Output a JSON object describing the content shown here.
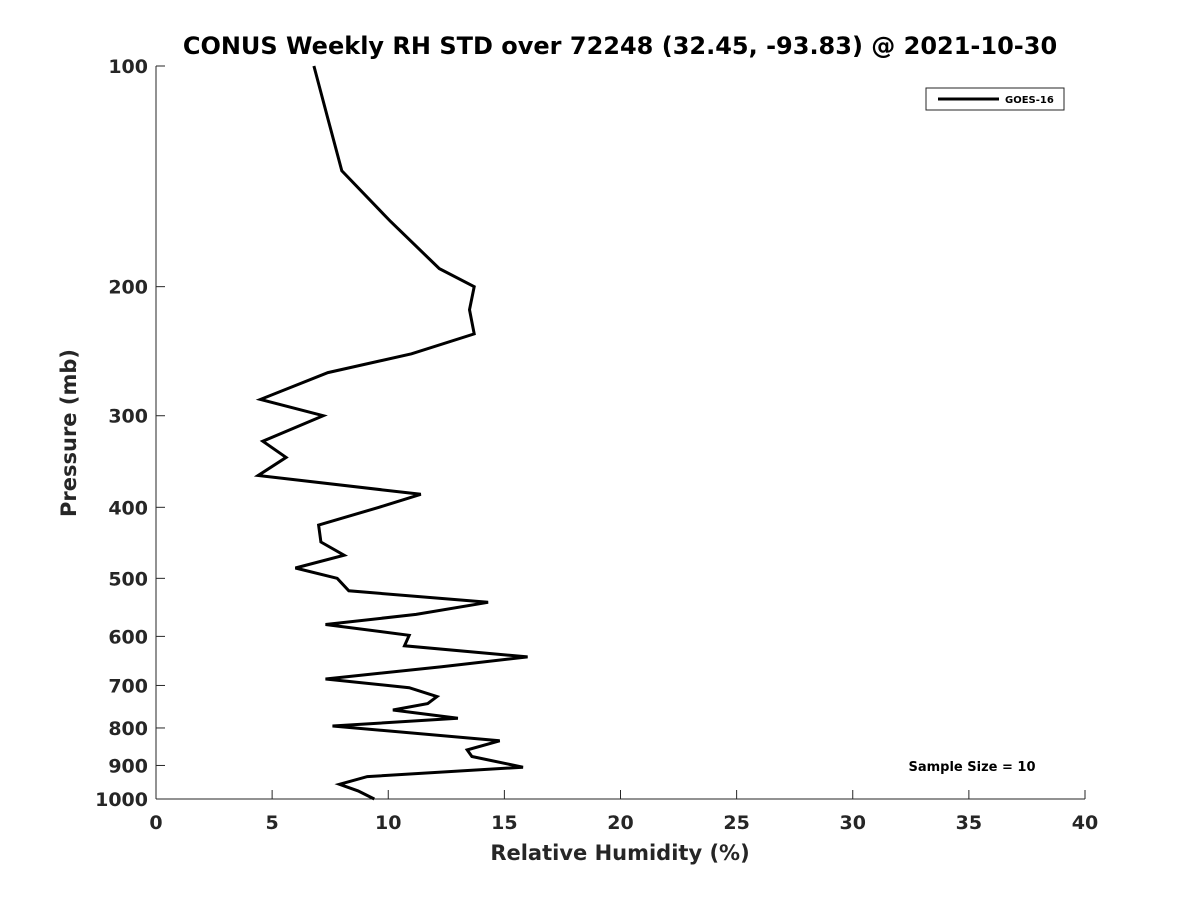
{
  "chart_data": {
    "type": "line",
    "title": "CONUS Weekly RH STD over 72248 (32.45, -93.83) @ 2021-10-30",
    "xlabel": "Relative Humidity (%)",
    "ylabel": "Pressure (mb)",
    "xlim": [
      0,
      40
    ],
    "ylim": [
      100,
      1000
    ],
    "y_scale": "log",
    "y_reversed": true,
    "x_ticks": [
      0,
      5,
      10,
      15,
      20,
      25,
      30,
      35,
      40
    ],
    "y_ticks": [
      100,
      200,
      300,
      400,
      500,
      600,
      700,
      800,
      900,
      1000
    ],
    "grid": false,
    "legend_position": "top-right",
    "annotation": "Sample Size = 10",
    "series": [
      {
        "name": "GOES-16",
        "color": "#000000",
        "points": [
          [
            6.8,
            100
          ],
          [
            7.4,
            118
          ],
          [
            8.0,
            139
          ],
          [
            10.1,
            163
          ],
          [
            12.2,
            189
          ],
          [
            13.7,
            200
          ],
          [
            13.5,
            215
          ],
          [
            13.7,
            232
          ],
          [
            11.0,
            247
          ],
          [
            7.4,
            262
          ],
          [
            4.5,
            285
          ],
          [
            7.2,
            300
          ],
          [
            4.6,
            325
          ],
          [
            5.6,
            342
          ],
          [
            4.4,
            362
          ],
          [
            11.4,
            384
          ],
          [
            9.6,
            400
          ],
          [
            7.0,
            423
          ],
          [
            7.1,
            446
          ],
          [
            8.1,
            465
          ],
          [
            6.0,
            484
          ],
          [
            7.8,
            500
          ],
          [
            8.3,
            520
          ],
          [
            14.3,
            539
          ],
          [
            11.2,
            560
          ],
          [
            7.3,
            578
          ],
          [
            10.9,
            598
          ],
          [
            10.7,
            618
          ],
          [
            16.0,
            640
          ],
          [
            12.3,
            660
          ],
          [
            7.3,
            686
          ],
          [
            10.9,
            705
          ],
          [
            12.1,
            725
          ],
          [
            11.7,
            741
          ],
          [
            10.2,
            756
          ],
          [
            13.0,
            776
          ],
          [
            7.6,
            795
          ],
          [
            14.8,
            833
          ],
          [
            13.4,
            857
          ],
          [
            13.6,
            875
          ],
          [
            15.8,
            905
          ],
          [
            9.1,
            932
          ],
          [
            7.9,
            955
          ],
          [
            8.7,
            975
          ],
          [
            9.4,
            1000
          ]
        ]
      }
    ]
  }
}
